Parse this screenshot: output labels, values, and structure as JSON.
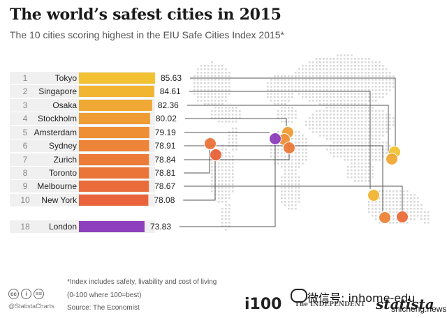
{
  "title": "The world’s safest cities in 2015",
  "subtitle": "The 10 cities scoring highest in the EIU Safe Cities Index 2015*",
  "chart_data": {
    "type": "bar",
    "orientation": "horizontal",
    "categories": [
      "Tokyo",
      "Singapore",
      "Osaka",
      "Stockholm",
      "Amsterdam",
      "Sydney",
      "Zurich",
      "Toronto",
      "Melbourne",
      "New York",
      "London"
    ],
    "ranks": [
      "1",
      "2",
      "3",
      "4",
      "5",
      "6",
      "7",
      "8",
      "9",
      "10",
      "18"
    ],
    "values": [
      85.63,
      84.61,
      82.36,
      80.02,
      79.19,
      78.91,
      78.84,
      78.81,
      78.67,
      78.08,
      73.83
    ],
    "value_labels": [
      "85.63",
      "84.61",
      "82.36",
      "80.02",
      "79.19",
      "78.91",
      "78.84",
      "78.81",
      "78.67",
      "78.08",
      "73.83"
    ],
    "bar_colors": [
      "#f2c232",
      "#f1b532",
      "#f0a934",
      "#ef9c35",
      "#ee8f36",
      "#ed8437",
      "#ec7b38",
      "#eb7439",
      "#ea6c3a",
      "#e9633b",
      "#8e3fbd"
    ],
    "grid": false,
    "legend": "none"
  },
  "notes": {
    "note1": "*Index includes safety, livability and cost of living",
    "note2": "(0-100 where 100=best)",
    "source": "Source: The Economist"
  },
  "footer": {
    "handle": "@StatistaCharts",
    "cc_icons": [
      "cc",
      "i",
      "=="
    ],
    "i100_logo": "i100",
    "independent_logo": "The INDEPENDENT",
    "statista_logo": "statista",
    "wechat_text": "微信号: inhome-edu",
    "site_text": "shicheng.news"
  }
}
